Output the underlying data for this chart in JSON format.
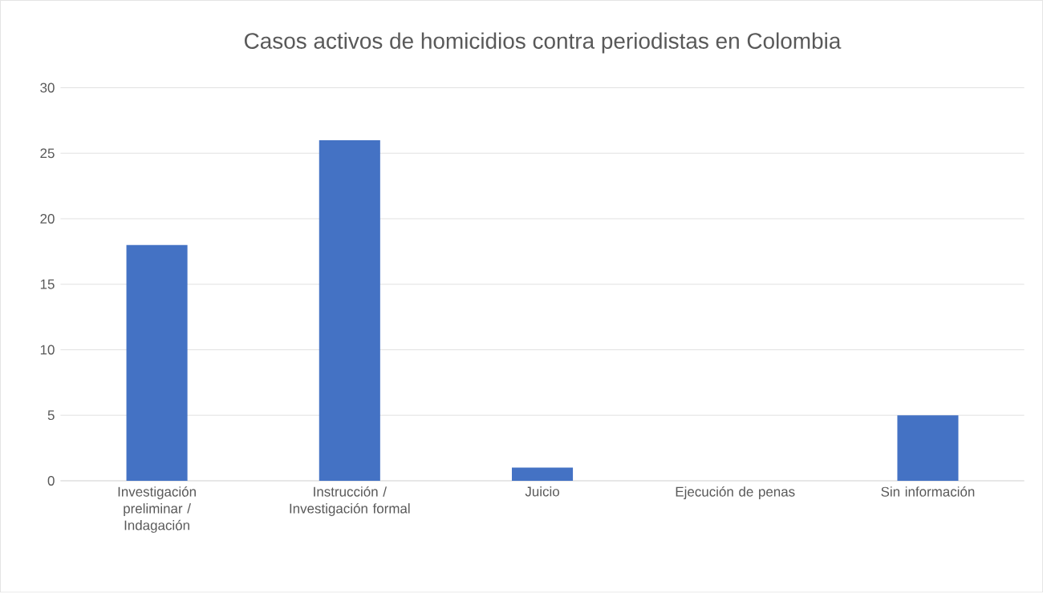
{
  "chart_data": {
    "type": "bar",
    "title": "Casos activos de homicidios contra periodistas en Colombia",
    "categories": [
      "Investigación preliminar / Indagación",
      "Instrucción / Investigación formal",
      "Juicio",
      "Ejecución de penas",
      "Sin información"
    ],
    "values": [
      18,
      26,
      1,
      0,
      5
    ],
    "color": "#4472c4",
    "ylim": [
      0,
      30
    ],
    "yticks": [
      0,
      5,
      10,
      15,
      20,
      25,
      30
    ],
    "grid": "y"
  }
}
